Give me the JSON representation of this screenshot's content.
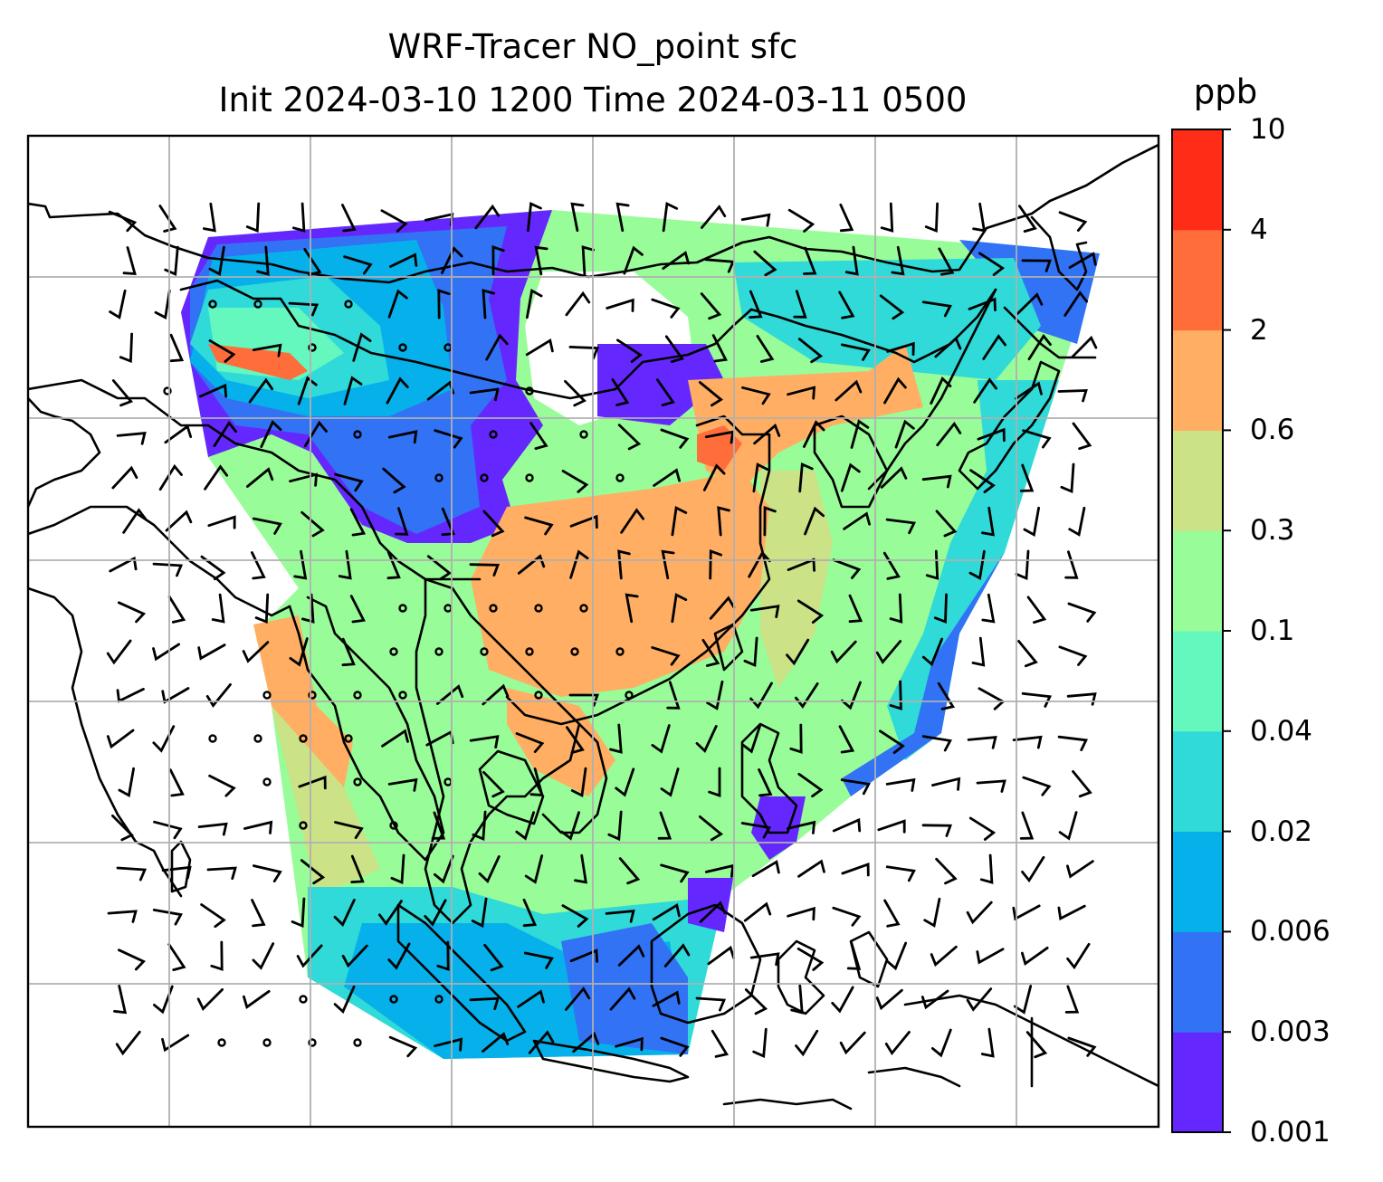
{
  "title": {
    "line1": "WRF-Tracer NO_point sfc",
    "line2": "Init 2024-03-10 1200 Time 2024-03-11 0500"
  },
  "colorbar": {
    "unit": "ppb",
    "ticks": [
      "0.001",
      "0.003",
      "0.006",
      "0.02",
      "0.04",
      "0.1",
      "0.3",
      "0.6",
      "2",
      "4",
      "10"
    ],
    "colors": [
      "#6428ff",
      "#3272f4",
      "#06b0ea",
      "#2fdad8",
      "#64f8bf",
      "#98fc98",
      "#cbe286",
      "#ffae63",
      "#ff6d3a",
      "#ff2c17"
    ]
  },
  "map": {
    "colors": {
      "coast": "#000000",
      "grid": "#b0b0b0",
      "barb": "#000000",
      "frame": "#000000"
    }
  }
}
